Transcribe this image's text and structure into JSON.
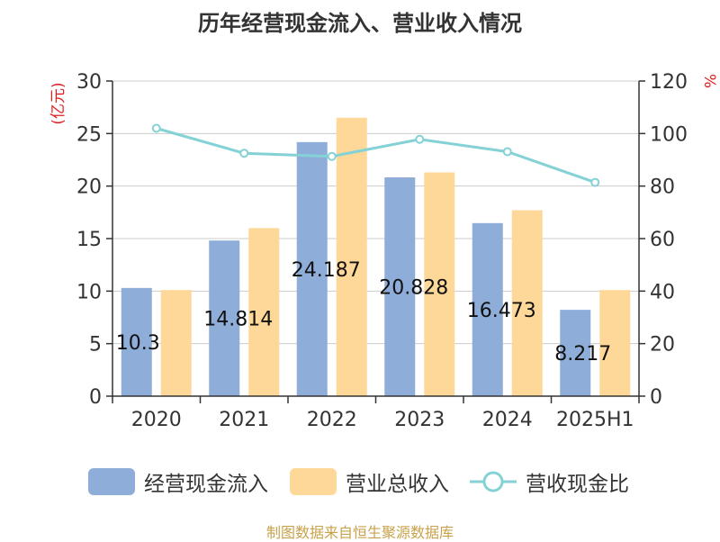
{
  "title": "历年经营现金流入、营业收入情况",
  "footer": "制图数据来自恒生聚源数据库",
  "chart_data": {
    "type": "bar",
    "categories": [
      "2020",
      "2021",
      "2022",
      "2023",
      "2024",
      "2025H1"
    ],
    "series": [
      {
        "name": "经营现金流入",
        "type": "bar",
        "axis": "left",
        "color": "#8eadd9",
        "values": [
          10.3,
          14.814,
          24.187,
          20.828,
          16.473,
          8.217
        ],
        "data_labels": [
          "10.3",
          "14.814",
          "24.187",
          "20.828",
          "16.473",
          "8.217"
        ]
      },
      {
        "name": "营业总收入",
        "type": "bar",
        "axis": "left",
        "color": "#fed898",
        "values": [
          10.1,
          16.0,
          26.5,
          21.3,
          17.7,
          10.1
        ]
      },
      {
        "name": "营收现金比",
        "type": "line",
        "axis": "right",
        "color": "#84d2d6",
        "values": [
          102,
          92.5,
          91.3,
          97.8,
          93.1,
          81.4
        ]
      }
    ],
    "y_left": {
      "label": "(亿元)",
      "min": 0,
      "max": 30,
      "ticks": [
        0,
        5,
        10,
        15,
        20,
        25,
        30
      ]
    },
    "y_right": {
      "label": "%",
      "min": 0,
      "max": 120,
      "ticks": [
        0,
        20,
        40,
        60,
        80,
        100,
        120
      ]
    },
    "grid": true,
    "legend_position": "bottom"
  }
}
